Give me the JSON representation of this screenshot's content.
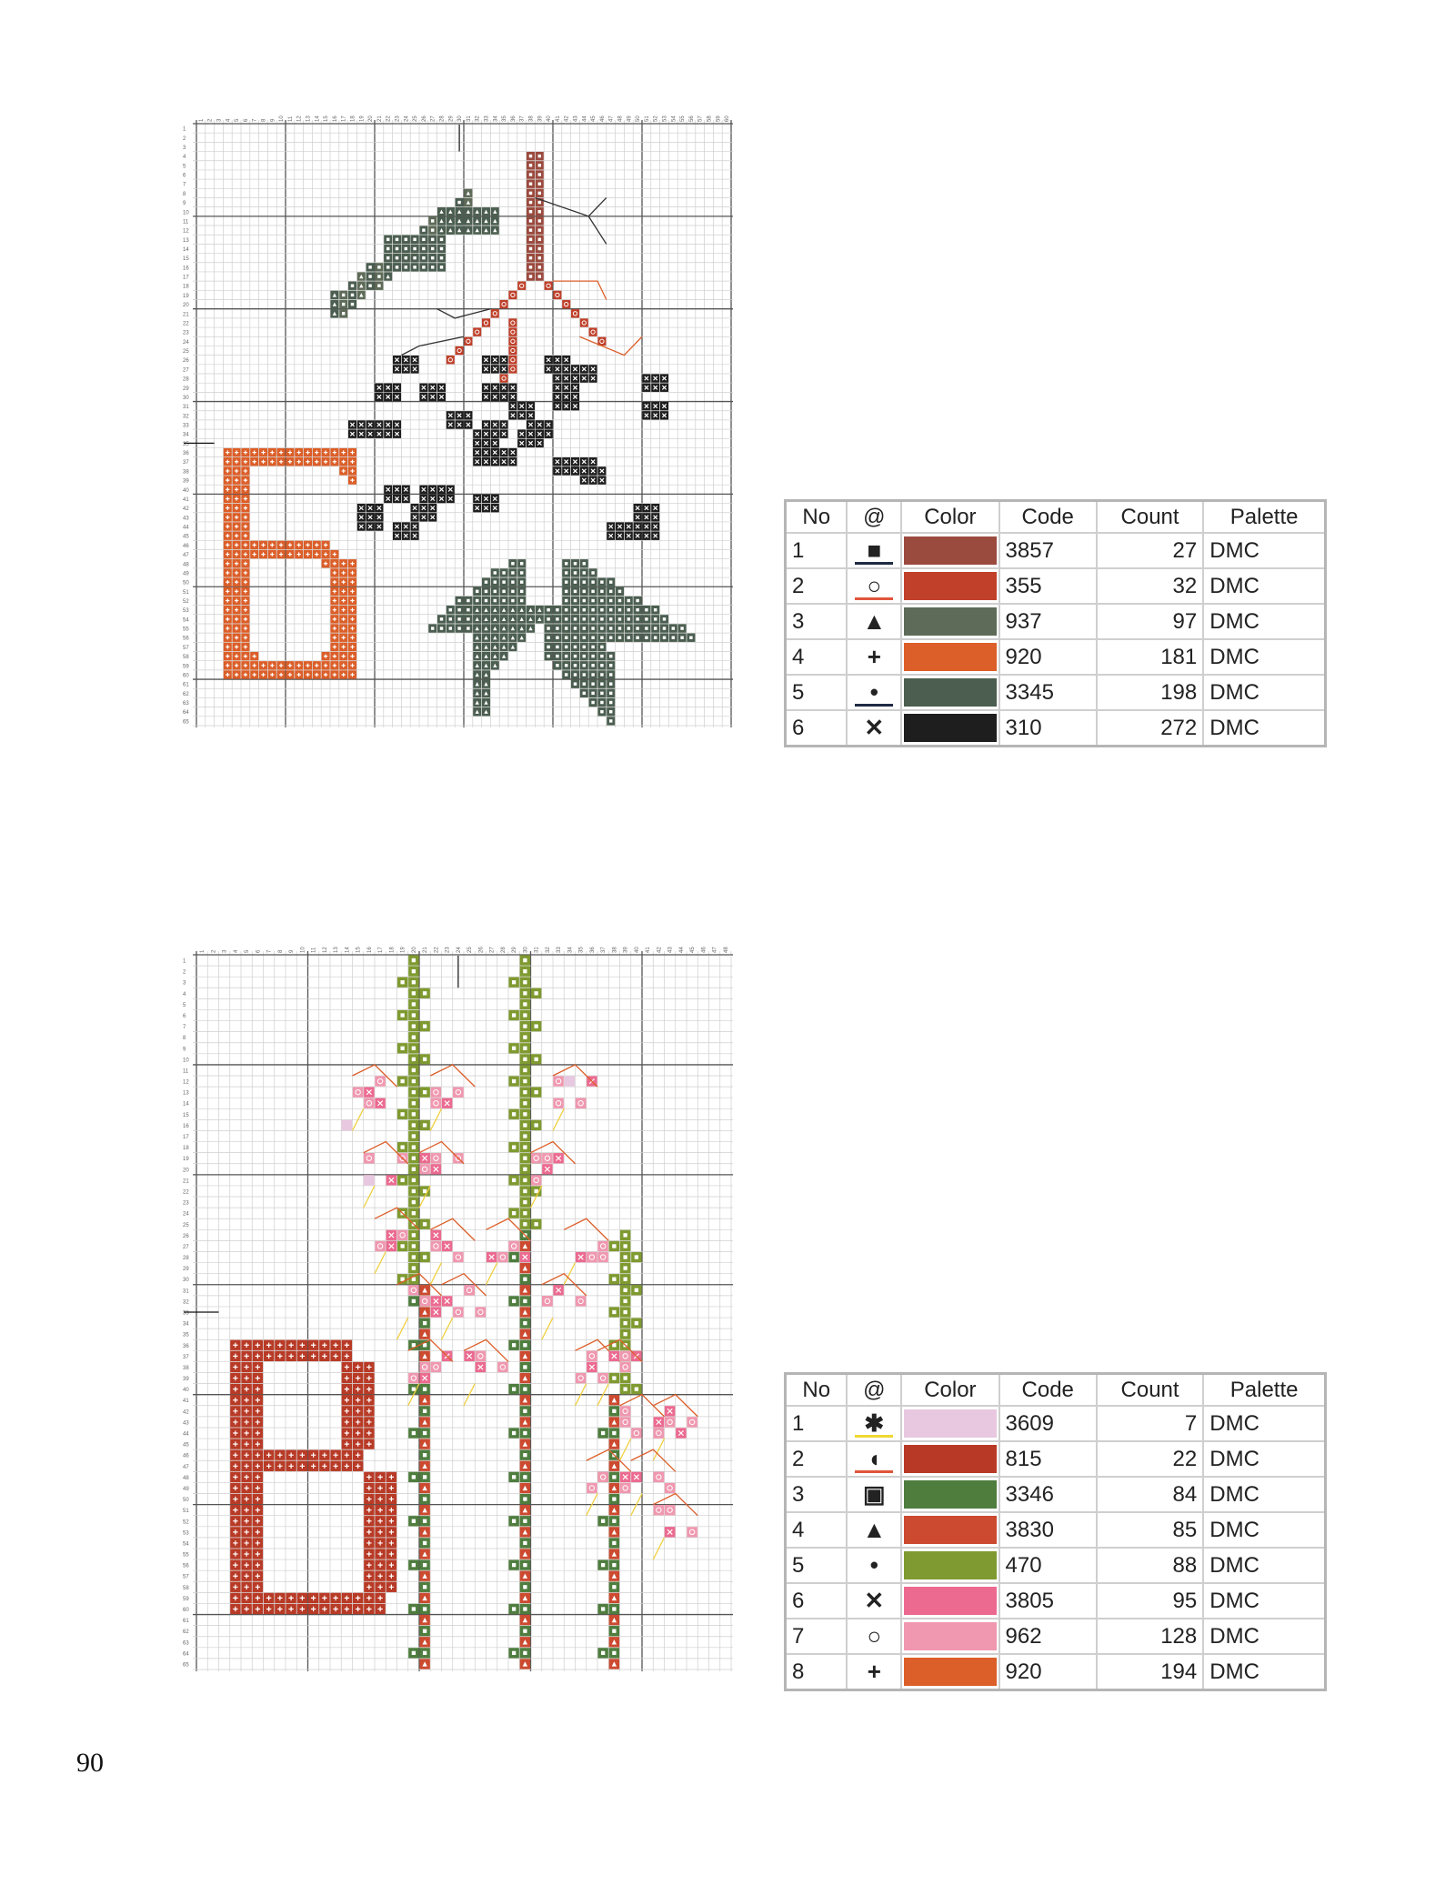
{
  "page_number": "90",
  "charts": [
    {
      "ruler": {
        "columns": 60,
        "rows": 65
      }
    },
    {
      "ruler": {
        "columns": 48,
        "rows": 65
      }
    }
  ],
  "headers": {
    "no": "No",
    "symbol": "@",
    "color": "Color",
    "code": "Code",
    "count": "Count",
    "palette": "Palette"
  },
  "keys": [
    {
      "rows": [
        {
          "no": "1",
          "symbol": "■",
          "symbol_name": "square-icon",
          "underline": "#1f2a44",
          "color": "#9b4a3e",
          "code": "3857",
          "count": "27",
          "palette": "DMC"
        },
        {
          "no": "2",
          "symbol": "○",
          "symbol_name": "circle-icon",
          "underline": "#e0553a",
          "color": "#c0402a",
          "code": "355",
          "count": "32",
          "palette": "DMC"
        },
        {
          "no": "3",
          "symbol": "▲",
          "symbol_name": "arrowhead-icon",
          "underline": "",
          "color": "#5e6b58",
          "code": "937",
          "count": "97",
          "palette": "DMC"
        },
        {
          "no": "4",
          "symbol": "+",
          "symbol_name": "plus-icon",
          "underline": "",
          "color": "#dc5e28",
          "code": "920",
          "count": "181",
          "palette": "DMC"
        },
        {
          "no": "5",
          "symbol": "•",
          "symbol_name": "dot-icon",
          "underline": "#1f2a44",
          "color": "#4b5e50",
          "code": "3345",
          "count": "198",
          "palette": "DMC"
        },
        {
          "no": "6",
          "symbol": "✕",
          "symbol_name": "cross-icon",
          "underline": "",
          "color": "#1e1e1e",
          "code": "310",
          "count": "272",
          "palette": "DMC"
        }
      ]
    },
    {
      "rows": [
        {
          "no": "1",
          "symbol": "✱",
          "symbol_name": "asterisk-icon",
          "underline": "#f0d830",
          "color": "#e8c8e0",
          "code": "3609",
          "count": "7",
          "palette": "DMC"
        },
        {
          "no": "2",
          "symbol": "◖",
          "symbol_name": "half-circle-icon",
          "underline": "#e0553a",
          "color": "#b83a26",
          "code": "815",
          "count": "22",
          "palette": "DMC"
        },
        {
          "no": "3",
          "symbol": "▣",
          "symbol_name": "square-in-square-icon",
          "underline": "",
          "color": "#4e7d3e",
          "code": "3346",
          "count": "84",
          "palette": "DMC"
        },
        {
          "no": "4",
          "symbol": "▲",
          "symbol_name": "arrowhead-icon",
          "underline": "",
          "color": "#cc4a30",
          "code": "3830",
          "count": "85",
          "palette": "DMC"
        },
        {
          "no": "5",
          "symbol": "•",
          "symbol_name": "dot-icon",
          "underline": "",
          "color": "#7f9a30",
          "code": "470",
          "count": "88",
          "palette": "DMC"
        },
        {
          "no": "6",
          "symbol": "✕",
          "symbol_name": "cross-icon",
          "underline": "",
          "color": "#ec6a90",
          "code": "3805",
          "count": "95",
          "palette": "DMC"
        },
        {
          "no": "7",
          "symbol": "○",
          "symbol_name": "circle-icon",
          "underline": "",
          "color": "#f098b0",
          "code": "962",
          "count": "128",
          "palette": "DMC"
        },
        {
          "no": "8",
          "symbol": "+",
          "symbol_name": "plus-icon",
          "underline": "",
          "color": "#dc5e28",
          "code": "920",
          "count": "194",
          "palette": "DMC"
        }
      ]
    }
  ]
}
